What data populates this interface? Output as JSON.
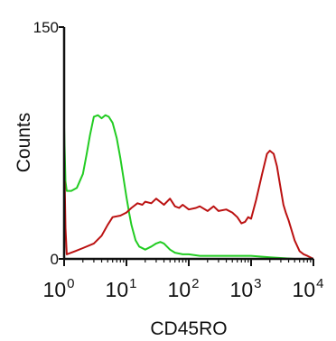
{
  "chart_data": {
    "type": "line",
    "title": "",
    "xlabel": "CD45RO",
    "ylabel": "Counts",
    "x_scale": "log",
    "xlim": [
      1,
      10000
    ],
    "ylim": [
      0,
      150
    ],
    "grid": false,
    "y_ticks": [
      {
        "value": 0,
        "label": "0"
      },
      {
        "value": 150,
        "label": "150"
      }
    ],
    "x_ticks": [
      {
        "value": 1,
        "base": "10",
        "exp": "0"
      },
      {
        "value": 10,
        "base": "10",
        "exp": "1"
      },
      {
        "value": 100,
        "base": "10",
        "exp": "2"
      },
      {
        "value": 1000,
        "base": "10",
        "exp": "3"
      },
      {
        "value": 10000,
        "base": "10",
        "exp": "4"
      }
    ],
    "series": [
      {
        "color": "#22cc22",
        "x": [
          1,
          1,
          1.05,
          1.1,
          1.3,
          1.6,
          2.0,
          2.3,
          2.6,
          3.0,
          3.5,
          4.0,
          4.6,
          5.2,
          6.0,
          7.0,
          8.0,
          9.0,
          10,
          11,
          12,
          14,
          16,
          20,
          25,
          30,
          35,
          40,
          50,
          60,
          80,
          100,
          150,
          200,
          300,
          500,
          1000,
          2000,
          5000,
          10000
        ],
        "y": [
          150,
          85,
          50,
          44,
          44,
          46,
          55,
          68,
          80,
          92,
          93,
          91,
          93,
          92,
          88,
          78,
          65,
          52,
          40,
          30,
          22,
          12,
          8,
          6,
          8,
          10,
          11,
          10,
          6,
          4,
          3,
          3,
          2,
          2,
          2,
          2,
          2,
          1,
          0,
          0
        ]
      },
      {
        "color": "#bb1111",
        "x": [
          1,
          1.02,
          1.05,
          1.1,
          1.5,
          2,
          3,
          4,
          5,
          6,
          8,
          10,
          12,
          15,
          18,
          20,
          25,
          30,
          40,
          50,
          60,
          70,
          80,
          100,
          130,
          150,
          200,
          250,
          300,
          400,
          500,
          600,
          700,
          800,
          900,
          1000,
          1200,
          1500,
          1800,
          2000,
          2300,
          2600,
          3000,
          3300,
          3600,
          4000,
          5000,
          6000,
          7000,
          8000,
          10000
        ],
        "y": [
          5,
          50,
          20,
          3,
          5,
          7,
          10,
          15,
          22,
          27,
          28,
          30,
          33,
          36,
          35,
          37,
          36,
          39,
          35,
          39,
          34,
          33,
          35,
          32,
          33,
          34,
          31,
          34,
          31,
          32,
          30,
          27,
          23,
          24,
          27,
          26,
          38,
          55,
          68,
          70,
          68,
          60,
          45,
          35,
          30,
          25,
          12,
          5,
          3,
          2,
          0
        ]
      }
    ]
  }
}
